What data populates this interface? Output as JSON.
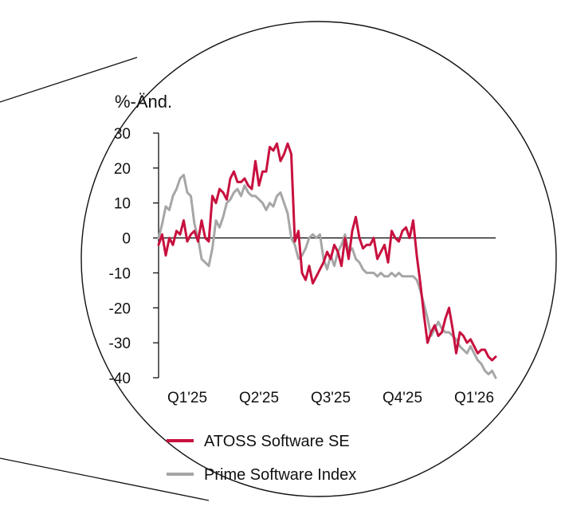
{
  "chart_data": {
    "type": "line",
    "title": "",
    "ylabel": "%-Änd.",
    "xlabel": "",
    "ylim": [
      -40,
      30
    ],
    "yticks": [
      "30",
      "20",
      "10",
      "0",
      "-10",
      "-20",
      "-30",
      "-40"
    ],
    "x_tick_labels": [
      "Q1'25",
      "Q2'25",
      "Q3'25",
      "Q4'25",
      "Q1'26"
    ],
    "x_tick_positions": [
      1,
      2,
      3,
      4,
      5
    ],
    "xlim": [
      0.6,
      5.3
    ],
    "grid": false,
    "zero_line": true,
    "legend_position": "bottom",
    "series": [
      {
        "name": "ATOSS Software SE",
        "color": "#c8103e",
        "x": [
          0.6,
          0.65,
          0.7,
          0.75,
          0.8,
          0.85,
          0.9,
          0.95,
          1.0,
          1.05,
          1.1,
          1.15,
          1.2,
          1.25,
          1.3,
          1.35,
          1.4,
          1.45,
          1.5,
          1.55,
          1.6,
          1.65,
          1.7,
          1.75,
          1.8,
          1.85,
          1.9,
          1.95,
          2.0,
          2.05,
          2.1,
          2.15,
          2.2,
          2.25,
          2.3,
          2.35,
          2.4,
          2.45,
          2.5,
          2.55,
          2.6,
          2.65,
          2.7,
          2.75,
          2.8,
          2.85,
          2.9,
          2.95,
          3.0,
          3.05,
          3.1,
          3.15,
          3.2,
          3.25,
          3.3,
          3.35,
          3.4,
          3.45,
          3.5,
          3.55,
          3.6,
          3.65,
          3.7,
          3.75,
          3.8,
          3.85,
          3.9,
          3.95,
          4.0,
          4.05,
          4.1,
          4.15,
          4.2,
          4.25,
          4.3,
          4.35,
          4.4,
          4.45,
          4.5,
          4.55,
          4.6,
          4.65,
          4.7,
          4.75,
          4.8,
          4.85,
          4.9,
          4.95,
          5.0,
          5.05,
          5.1,
          5.15,
          5.2,
          5.25,
          5.3
        ],
        "values": [
          -2,
          1,
          -5,
          0,
          -2,
          2,
          1,
          5,
          -1,
          1,
          2,
          -1,
          5,
          0,
          -1,
          12,
          10,
          14,
          13,
          11,
          17,
          19,
          16,
          16,
          17,
          15,
          14,
          22,
          15,
          19,
          19,
          26,
          25,
          27,
          22,
          24,
          27,
          24,
          -1,
          2,
          -10,
          -12,
          -8,
          -13,
          -11,
          -9,
          -7,
          -4,
          -6,
          -2,
          -4,
          -8,
          0,
          -6,
          2,
          6,
          0,
          -3,
          -2,
          -2,
          0,
          -6,
          -4,
          -2,
          -7,
          2,
          0,
          -1,
          2,
          3,
          0,
          5,
          -5,
          -13,
          -22,
          -30,
          -27,
          -25,
          -28,
          -27,
          -23,
          -20,
          -26,
          -33,
          -27,
          -28,
          -30,
          -29,
          -31,
          -33,
          -32,
          -32,
          -34,
          -35,
          -34
        ]
      },
      {
        "name": "Prime Software Index",
        "color": "#a6a6a6",
        "x": [
          0.6,
          0.65,
          0.7,
          0.75,
          0.8,
          0.85,
          0.9,
          0.95,
          1.0,
          1.05,
          1.1,
          1.15,
          1.2,
          1.25,
          1.3,
          1.35,
          1.4,
          1.45,
          1.5,
          1.55,
          1.6,
          1.65,
          1.7,
          1.75,
          1.8,
          1.85,
          1.9,
          1.95,
          2.0,
          2.05,
          2.1,
          2.15,
          2.2,
          2.25,
          2.3,
          2.35,
          2.4,
          2.45,
          2.5,
          2.55,
          2.6,
          2.65,
          2.7,
          2.75,
          2.8,
          2.85,
          2.9,
          2.95,
          3.0,
          3.05,
          3.1,
          3.15,
          3.2,
          3.25,
          3.3,
          3.35,
          3.4,
          3.45,
          3.5,
          3.55,
          3.6,
          3.65,
          3.7,
          3.75,
          3.8,
          3.85,
          3.9,
          3.95,
          4.0,
          4.05,
          4.1,
          4.15,
          4.2,
          4.25,
          4.3,
          4.35,
          4.4,
          4.45,
          4.5,
          4.55,
          4.6,
          4.65,
          4.7,
          4.75,
          4.8,
          4.85,
          4.9,
          4.95,
          5.0,
          5.05,
          5.1,
          5.15,
          5.2,
          5.25,
          5.3
        ],
        "values": [
          0,
          4,
          9,
          8,
          12,
          14,
          17,
          18,
          13,
          12,
          4,
          0,
          -6,
          -7,
          -8,
          -3,
          5,
          3,
          6,
          10,
          11,
          13,
          14,
          12,
          15,
          13,
          12,
          12,
          11,
          10,
          8,
          10,
          9,
          12,
          13,
          10,
          7,
          0,
          -2,
          -6,
          -5,
          -3,
          0,
          1,
          0,
          1,
          -6,
          -9,
          -5,
          -8,
          -4,
          -2,
          1,
          -4,
          -3,
          -6,
          -7,
          -9,
          -10,
          -10,
          -10,
          -11,
          -10,
          -11,
          -11,
          -10,
          -11,
          -10,
          -11,
          -11,
          -11,
          -11,
          -12,
          -15,
          -19,
          -23,
          -28,
          -26,
          -24,
          -26,
          -27,
          -27,
          -28,
          -29,
          -31,
          -32,
          -33,
          -31,
          -33,
          -35,
          -36,
          -38,
          -39,
          -38,
          -40
        ]
      }
    ]
  }
}
